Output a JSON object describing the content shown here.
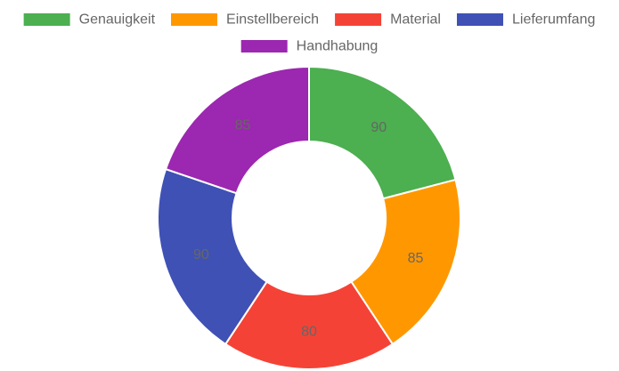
{
  "chart_data": {
    "type": "pie",
    "variant": "doughnut",
    "categories": [
      "Genauigkeit",
      "Einstellbereich",
      "Material",
      "Lieferumfang",
      "Handhabung"
    ],
    "values": [
      90,
      85,
      80,
      90,
      85
    ],
    "colors": [
      "#4caf50",
      "#ff9800",
      "#f44336",
      "#3f51b5",
      "#9c27b0"
    ],
    "legend_position": "top",
    "data_labels": true,
    "title": "",
    "xlabel": "",
    "ylabel": ""
  }
}
